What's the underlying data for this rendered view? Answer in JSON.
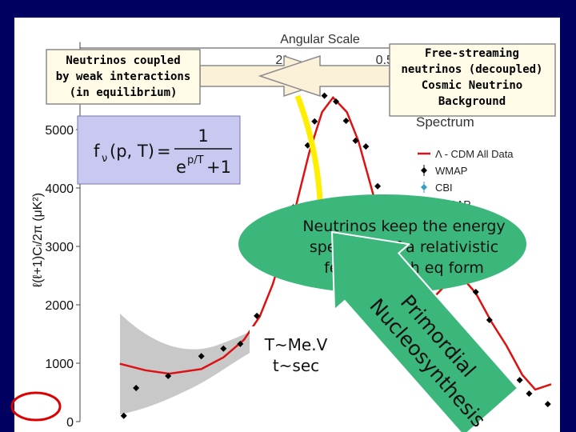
{
  "chart_data": {
    "type": "scatter",
    "x2_label": "Angular Scale",
    "x2_tick_labels": [
      "2°",
      "0.5°"
    ],
    "subtitle": "Spectrum",
    "ylabel": "ℓ(ℓ+1)Cₗ/2π (μK²)",
    "xlim": [
      2,
      1500
    ],
    "xlog": true,
    "ylim": [
      0,
      6500
    ],
    "yticks": [
      0,
      1000,
      2000,
      3000,
      4000,
      5000
    ],
    "legend": "upper right",
    "series": [
      {
        "name": "Λ - CDM All Data",
        "type": "line",
        "color": "#dd1111",
        "x": [
          3.5,
          5,
          7,
          11,
          15,
          20,
          25,
          30,
          40,
          50,
          60,
          70,
          85,
          100,
          120,
          150,
          200,
          260,
          330,
          420,
          520,
          650,
          800,
          1000,
          1200,
          1500
        ],
        "values": [
          990,
          880,
          820,
          900,
          1100,
          1400,
          1800,
          2350,
          3500,
          4600,
          5300,
          5550,
          5300,
          4800,
          4000,
          3000,
          2200,
          2000,
          2300,
          2500,
          2200,
          1700,
          1300,
          800,
          550,
          640
        ]
      },
      {
        "name": "WMAP",
        "type": "scatter",
        "color": "#000000",
        "x": [
          3.7,
          4.4,
          6.9,
          11,
          15,
          19,
          24,
          31,
          35,
          40,
          49,
          54,
          62,
          73,
          84,
          96,
          111,
          131,
          415,
          520,
          630,
          964,
          1100,
          1430
        ],
        "values": [
          100,
          575,
          780,
          1120,
          1250,
          1330,
          1810,
          2630,
          3110,
          3670,
          4730,
          5140,
          5580,
          5480,
          5150,
          4810,
          4710,
          4030,
          2550,
          2220,
          1740,
          710,
          480,
          300
        ]
      },
      {
        "name": "CBI",
        "type": "scatter",
        "color": "#33a0c8",
        "x": [],
        "values": []
      },
      {
        "name": "ACBAR",
        "type": "scatter",
        "color": "#222222",
        "x": [],
        "values": []
      }
    ]
  },
  "callouts": {
    "coupled": {
      "lines": [
        "Neutrinos coupled",
        "by weak interactions",
        "(in equilibrium)"
      ]
    },
    "free_streaming": {
      "lines": [
        "Free-streaming",
        "neutrinos (decoupled)",
        "Cosmic Neutrino",
        "Background"
      ]
    },
    "formula": {
      "function": "f",
      "subscript": "ν",
      "arguments": "(p, T)",
      "equals": "=",
      "numerator": "1",
      "base": "e",
      "exponent": "p/T",
      "plus_one": "+1"
    },
    "spectrum_note": {
      "lines": [
        "Neutrinos keep the energy",
        "spectrum of a relativistic",
        "fermion with eq form"
      ]
    },
    "nucleosynthesis": {
      "lines": [
        "Primordial",
        "Nucleosynthesis"
      ]
    },
    "era": {
      "lines": [
        "T~Me.V",
        "t~sec"
      ]
    }
  }
}
